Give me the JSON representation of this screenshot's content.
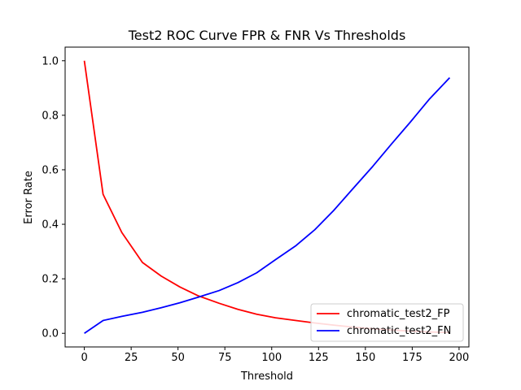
{
  "chart_data": {
    "type": "line",
    "title": "Test2 ROC Curve FPR & FNR Vs Thresholds",
    "xlabel": "Threshold",
    "ylabel": "Error Rate",
    "xlim": [
      -10.25,
      205.25
    ],
    "ylim": [
      -0.05,
      1.05
    ],
    "xticks": [
      0,
      25,
      50,
      75,
      100,
      125,
      150,
      175,
      200
    ],
    "yticks": [
      0.0,
      0.2,
      0.4,
      0.6,
      0.8,
      1.0
    ],
    "xtick_labels": [
      "0",
      "25",
      "50",
      "75",
      "100",
      "125",
      "150",
      "175",
      "200"
    ],
    "ytick_labels": [
      "0.0",
      "0.2",
      "0.4",
      "0.6",
      "0.8",
      "1.0"
    ],
    "grid": false,
    "legend_position": "lower-right",
    "series": [
      {
        "name": "chromatic_test2_FP",
        "color": "#ff0000",
        "x": [
          0,
          10,
          20,
          31,
          41,
          51,
          61,
          72,
          82,
          92,
          102,
          113,
          123,
          133,
          143,
          154,
          164,
          174,
          184,
          195
        ],
        "y": [
          1.0,
          0.51,
          0.37,
          0.26,
          0.21,
          0.17,
          0.137,
          0.11,
          0.088,
          0.07,
          0.057,
          0.047,
          0.038,
          0.03,
          0.023,
          0.017,
          0.012,
          0.008,
          0.005,
          0.003
        ]
      },
      {
        "name": "chromatic_test2_FN",
        "color": "#0000ff",
        "x": [
          0,
          10,
          20,
          31,
          41,
          51,
          61,
          72,
          82,
          92,
          102,
          113,
          123,
          133,
          143,
          154,
          164,
          174,
          184,
          195
        ],
        "y": [
          0.0,
          0.047,
          0.062,
          0.077,
          0.094,
          0.112,
          0.133,
          0.157,
          0.186,
          0.222,
          0.27,
          0.322,
          0.38,
          0.45,
          0.528,
          0.613,
          0.695,
          0.775,
          0.858,
          0.938
        ]
      }
    ]
  }
}
